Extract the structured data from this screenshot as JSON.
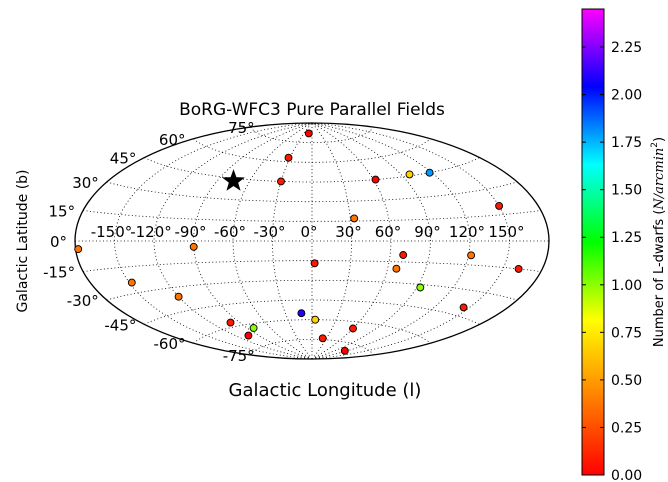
{
  "chart_data": {
    "type": "scatter",
    "projection": "aitoff",
    "title": "BoRG-WFC3 Pure Parallel Fields",
    "xlabel": "Galactic Longitude (l)",
    "ylabel": "Galactic Latitude (b)",
    "lon_ticks": [
      "-150°",
      "-120°",
      "-90°",
      "-60°",
      "-30°",
      "0°",
      "30°",
      "60°",
      "90°",
      "120°",
      "150°"
    ],
    "lat_ticks": [
      "-75°",
      "-60°",
      "-45°",
      "-30°",
      "-15°",
      "0°",
      "15°",
      "30°",
      "45°",
      "60°",
      "75°"
    ],
    "grid": true,
    "colorbar": {
      "label_prefix": "Number of L-dwarfs (",
      "label_unit": "N/arcmin",
      "label_exp": "2",
      "label_suffix": ")",
      "range": [
        0,
        2.45
      ],
      "ticks": [
        "0.00",
        "0.25",
        "0.50",
        "0.75",
        "1.00",
        "1.25",
        "1.50",
        "1.75",
        "2.00",
        "2.25"
      ],
      "colormap": "gist_rainbow",
      "stops": [
        "#ff0000",
        "#ff8000",
        "#ffff00",
        "#00ff00",
        "#00ffff",
        "#0000ff",
        "#ff00ff"
      ]
    },
    "marker": {
      "symbol": "star",
      "l": -75,
      "b": 43
    },
    "points": [
      {
        "l": -12,
        "b": 82,
        "v": 0.0
      },
      {
        "l": -32,
        "b": 63,
        "v": 0.05
      },
      {
        "l": -30,
        "b": 45,
        "v": 0.05
      },
      {
        "l": 62,
        "b": 45,
        "v": 0.0
      },
      {
        "l": 98,
        "b": 46,
        "v": 0.45
      },
      {
        "l": 118,
        "b": 45,
        "v": 1.85
      },
      {
        "l": 150,
        "b": 20,
        "v": 0.05
      },
      {
        "l": 33,
        "b": 17,
        "v": 0.25
      },
      {
        "l": -90,
        "b": -4,
        "v": 0.25
      },
      {
        "l": 122,
        "b": -9,
        "v": 0.25
      },
      {
        "l": 162,
        "b": -15,
        "v": 0.05
      },
      {
        "l": 70,
        "b": -10,
        "v": 0.05
      },
      {
        "l": 2,
        "b": -17,
        "v": 0.05
      },
      {
        "l": 67,
        "b": -20,
        "v": 0.25
      },
      {
        "l": -178,
        "b": -4,
        "v": 0.25
      },
      {
        "l": -148,
        "b": -24,
        "v": 0.25
      },
      {
        "l": -120,
        "b": -36,
        "v": 0.25
      },
      {
        "l": 93,
        "b": -32,
        "v": 0.8
      },
      {
        "l": 145,
        "b": -40,
        "v": 0.05
      },
      {
        "l": -12,
        "b": -55,
        "v": 2.25
      },
      {
        "l": 4,
        "b": -60,
        "v": 0.45
      },
      {
        "l": -100,
        "b": -57,
        "v": 0.05
      },
      {
        "l": -104,
        "b": -67,
        "v": 0.0
      },
      {
        "l": -82,
        "b": -63,
        "v": 0.8
      },
      {
        "l": 60,
        "b": -65,
        "v": 0.05
      },
      {
        "l": 22,
        "b": -74,
        "v": 0.05
      },
      {
        "l": 115,
        "b": -80,
        "v": 0.0
      }
    ]
  }
}
